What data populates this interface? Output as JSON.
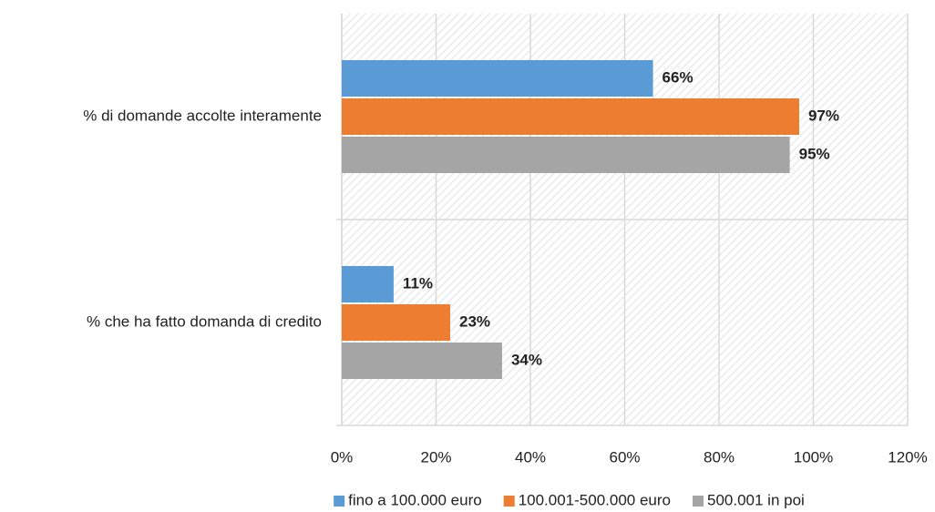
{
  "chart_data": {
    "type": "bar",
    "orientation": "horizontal",
    "categories": [
      "% di domande accolte interamente",
      "% che ha fatto domanda di credito"
    ],
    "series": [
      {
        "name": "fino a 100.000 euro",
        "color": "#5b9bd5",
        "values": [
          66,
          11
        ],
        "value_labels": [
          "66%",
          "11%"
        ]
      },
      {
        "name": "100.001-500.000 euro",
        "color": "#ed7d31",
        "values": [
          97,
          23
        ],
        "value_labels": [
          "97%",
          "23%"
        ]
      },
      {
        "name": "500.001 in poi",
        "color": "#a5a5a5",
        "values": [
          95,
          34
        ],
        "value_labels": [
          "95%",
          "34%"
        ]
      }
    ],
    "xlim": [
      0,
      120
    ],
    "xticks": [
      {
        "value": 0,
        "label": "0%"
      },
      {
        "value": 20,
        "label": "20%"
      },
      {
        "value": 40,
        "label": "40%"
      },
      {
        "value": 60,
        "label": "60%"
      },
      {
        "value": 80,
        "label": "80%"
      },
      {
        "value": 100,
        "label": "100%"
      },
      {
        "value": 120,
        "label": "120%"
      }
    ],
    "grid": true,
    "legend": "bottom"
  }
}
